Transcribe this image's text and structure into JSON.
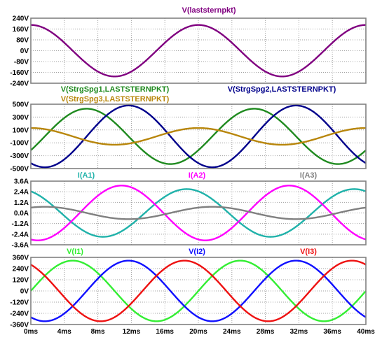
{
  "colors": {
    "purple": "#800080",
    "green": "#1f8a1f",
    "navy": "#00008b",
    "olive": "#b8860b",
    "cyan": "#20b2aa",
    "magenta": "#ff00ff",
    "gray": "#808080",
    "lime": "#33ee33",
    "blue": "#1010ff",
    "red": "#ee1111",
    "grid": "#a0a0a0",
    "frame": "#808080"
  },
  "chart_data": {
    "type": "line",
    "xlabel": "",
    "x_range_ms": [
      0,
      40
    ],
    "x_ticks": [
      "0ms",
      "4ms",
      "8ms",
      "12ms",
      "16ms",
      "20ms",
      "24ms",
      "28ms",
      "32ms",
      "36ms",
      "40ms"
    ],
    "panes": [
      {
        "ylim": [
          -240,
          240
        ],
        "y_ticks": [
          "240V",
          "160V",
          "80V",
          "0V",
          "-80V",
          "-160V",
          "-240V"
        ],
        "series": [
          {
            "name": "V(laststernpkt)",
            "color": "purple",
            "amplitude": 190,
            "phase_deg": 90
          }
        ]
      },
      {
        "ylim": [
          -500,
          500
        ],
        "y_ticks": [
          "500V",
          "300V",
          "100V",
          "-100V",
          "-300V",
          "-500V"
        ],
        "series": [
          {
            "name": "V(StrgSpg1,LASTSTERNPKT)",
            "color": "green",
            "amplitude": 430,
            "phase_deg": -30
          },
          {
            "name": "V(StrgSpg2,LASTSTERNPKT)",
            "color": "navy",
            "amplitude": 480,
            "phase_deg": -120
          },
          {
            "name": "V(StrgSpg3,LASTSTERNPKT)",
            "color": "olive",
            "amplitude": 130,
            "phase_deg": 90
          }
        ]
      },
      {
        "ylim": [
          -3.6,
          3.6
        ],
        "y_ticks": [
          "3.6A",
          "2.4A",
          "1.2A",
          "0.0A",
          "-1.2A",
          "-2.4A",
          "-3.6A"
        ],
        "series": [
          {
            "name": "I(A1)",
            "color": "cyan",
            "amplitude": 2.7,
            "phase_deg": 115
          },
          {
            "name": "I(A2)",
            "color": "magenta",
            "amplitude": 3.1,
            "phase_deg": -105
          },
          {
            "name": "I(A3)",
            "color": "gray",
            "amplitude": 0.7,
            "phase_deg": 60
          }
        ]
      },
      {
        "ylim": [
          -360,
          360
        ],
        "y_ticks": [
          "360V",
          "240V",
          "120V",
          "0V",
          "-120V",
          "-240V",
          "-360V"
        ],
        "series": [
          {
            "name": "V(I1)",
            "color": "lime",
            "amplitude": 325,
            "phase_deg": 0
          },
          {
            "name": "V(I2)",
            "color": "blue",
            "amplitude": 325,
            "phase_deg": -120
          },
          {
            "name": "V(I3)",
            "color": "red",
            "amplitude": 325,
            "phase_deg": 120
          }
        ]
      }
    ]
  }
}
